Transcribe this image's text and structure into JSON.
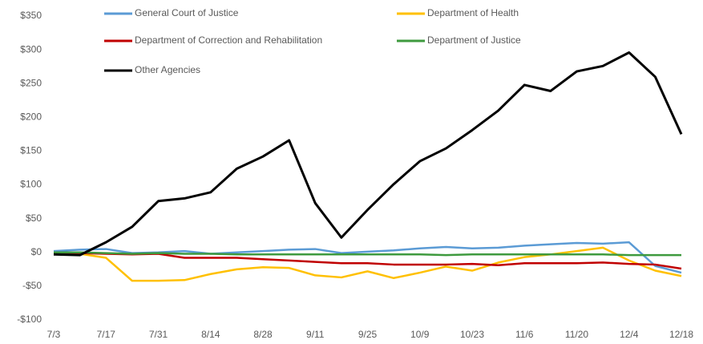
{
  "chart_data": {
    "type": "line",
    "categories": [
      "7/3",
      null,
      "7/17",
      null,
      "7/31",
      null,
      "8/14",
      null,
      "8/28",
      null,
      "9/11",
      null,
      "9/25",
      null,
      "10/9",
      null,
      "10/23",
      null,
      "11/6",
      null,
      "11/20",
      null,
      "12/4",
      null,
      "12/18"
    ],
    "series": [
      {
        "name": "General Court of Justice",
        "color": "#5b9bd5",
        "values": [
          2,
          4,
          5,
          -1,
          0,
          2,
          -2,
          0,
          2,
          4,
          5,
          -1,
          1,
          3,
          6,
          8,
          6,
          7,
          10,
          12,
          14,
          13,
          15,
          -20,
          -30
        ]
      },
      {
        "name": "Department of Health",
        "color": "#ffc000",
        "values": [
          0,
          -2,
          -8,
          -42,
          -42,
          -41,
          -32,
          -25,
          -22,
          -23,
          -34,
          -37,
          -28,
          -38,
          -30,
          -21,
          -27,
          -15,
          -7,
          -3,
          2,
          7,
          -12,
          -27,
          -35
        ]
      },
      {
        "name": "Department of Correction and Rehabilitation",
        "color": "#c00000",
        "values": [
          -2,
          -1,
          -2,
          -3,
          -2,
          -8,
          -8,
          -8,
          -10,
          -12,
          -14,
          -16,
          -16,
          -18,
          -18,
          -18,
          -17,
          -19,
          -16,
          -16,
          -16,
          -15,
          -17,
          -18,
          -24
        ]
      },
      {
        "name": "Department of Justice",
        "color": "#3e9a3e",
        "values": [
          0,
          0,
          -1,
          -2,
          -1,
          -2,
          -2,
          -3,
          -3,
          -3,
          -3,
          -3,
          -3,
          -3,
          -3,
          -4,
          -3,
          -3,
          -3,
          -3,
          -3,
          -3,
          -4,
          -4,
          -4
        ]
      },
      {
        "name": "Other Agencies",
        "color": "#000000",
        "values": [
          -3,
          -4,
          15,
          38,
          76,
          80,
          89,
          124,
          142,
          166,
          73,
          22,
          63,
          101,
          135,
          154,
          181,
          210,
          248,
          239,
          268,
          276,
          296,
          260,
          175
        ]
      }
    ],
    "ylim": [
      -100,
      350
    ],
    "yticks": [
      {
        "value": -100,
        "label": "-$100"
      },
      {
        "value": -50,
        "label": "-$50"
      },
      {
        "value": 0,
        "label": "$0"
      },
      {
        "value": 50,
        "label": "$50"
      },
      {
        "value": 100,
        "label": "$100"
      },
      {
        "value": 150,
        "label": "$150"
      },
      {
        "value": 200,
        "label": "$200"
      },
      {
        "value": 250,
        "label": "$250"
      },
      {
        "value": 300,
        "label": "$300"
      },
      {
        "value": 350,
        "label": "$350"
      }
    ],
    "grid": false
  }
}
